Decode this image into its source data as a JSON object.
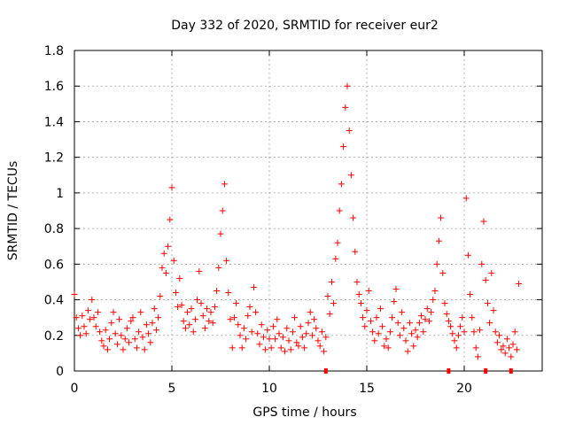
{
  "chart_data": {
    "type": "scatter",
    "title": "Day 332 of 2020, SRMTID for receiver eur2",
    "xlabel": "GPS time / hours",
    "ylabel": "SRMTID / TECUs",
    "xlim": [
      0,
      24
    ],
    "ylim": [
      0,
      1.8
    ],
    "xticks": [
      0,
      5,
      10,
      15,
      20
    ],
    "yticks": [
      0,
      0.2,
      0.4,
      0.6,
      0.8,
      1,
      1.2,
      1.4,
      1.6,
      1.8
    ],
    "xtick_labels": [
      "0",
      "5",
      "10",
      "15",
      "20"
    ],
    "ytick_labels": [
      "0",
      "0.2",
      "0.4",
      "0.6",
      "0.8",
      "1",
      "1.2",
      "1.4",
      "1.6",
      "1.8"
    ],
    "grid": true,
    "marker": "+",
    "color": "#ff0000",
    "series": [
      {
        "name": "SRMTID",
        "x": [
          0.0,
          0.1,
          0.2,
          0.3,
          0.4,
          0.5,
          0.6,
          0.7,
          0.8,
          0.9,
          1.0,
          1.1,
          1.2,
          1.3,
          1.4,
          1.5,
          1.6,
          1.7,
          1.8,
          1.9,
          2.0,
          2.1,
          2.2,
          2.3,
          2.4,
          2.5,
          2.6,
          2.7,
          2.8,
          2.9,
          3.0,
          3.1,
          3.2,
          3.3,
          3.4,
          3.5,
          3.6,
          3.7,
          3.8,
          3.9,
          4.0,
          4.1,
          4.2,
          4.3,
          4.4,
          4.5,
          4.6,
          4.7,
          4.8,
          4.9,
          5.0,
          5.1,
          5.2,
          5.3,
          5.4,
          5.5,
          5.6,
          5.7,
          5.8,
          5.9,
          6.0,
          6.1,
          6.2,
          6.3,
          6.4,
          6.5,
          6.6,
          6.7,
          6.8,
          6.9,
          7.0,
          7.1,
          7.2,
          7.3,
          7.4,
          7.5,
          7.6,
          7.7,
          7.8,
          7.9,
          8.0,
          8.1,
          8.2,
          8.3,
          8.4,
          8.5,
          8.6,
          8.7,
          8.8,
          8.9,
          9.0,
          9.1,
          9.2,
          9.3,
          9.4,
          9.5,
          9.6,
          9.7,
          9.8,
          9.9,
          10.0,
          10.1,
          10.2,
          10.3,
          10.4,
          10.5,
          10.6,
          10.7,
          10.8,
          10.9,
          11.0,
          11.1,
          11.2,
          11.3,
          11.4,
          11.5,
          11.6,
          11.7,
          11.8,
          11.9,
          12.0,
          12.1,
          12.2,
          12.3,
          12.4,
          12.5,
          12.6,
          12.7,
          12.8,
          12.9,
          13.0,
          13.1,
          13.2,
          13.3,
          13.4,
          13.5,
          13.6,
          13.7,
          13.8,
          13.9,
          14.0,
          14.1,
          14.2,
          14.3,
          14.4,
          14.5,
          14.6,
          14.7,
          14.8,
          14.9,
          15.0,
          15.1,
          15.2,
          15.3,
          15.4,
          15.5,
          15.6,
          15.7,
          15.8,
          15.9,
          16.0,
          16.1,
          16.2,
          16.3,
          16.4,
          16.5,
          16.6,
          16.7,
          16.8,
          16.9,
          17.0,
          17.1,
          17.2,
          17.3,
          17.4,
          17.5,
          17.6,
          17.7,
          17.8,
          17.9,
          18.0,
          18.1,
          18.2,
          18.3,
          18.4,
          18.5,
          18.6,
          18.7,
          18.8,
          18.9,
          19.0,
          19.1,
          19.2,
          19.3,
          19.4,
          19.5,
          19.6,
          19.7,
          19.8,
          19.9,
          20.0,
          20.1,
          20.2,
          20.3,
          20.4,
          20.5,
          20.6,
          20.7,
          20.8,
          20.9,
          21.0,
          21.1,
          21.2,
          21.3,
          21.4,
          21.5,
          21.6,
          21.7,
          21.8,
          21.9,
          22.0,
          22.1,
          22.2,
          22.3,
          22.4,
          22.5,
          22.6,
          22.7,
          22.8
        ],
        "y": [
          0.43,
          0.3,
          0.24,
          0.2,
          0.31,
          0.25,
          0.21,
          0.34,
          0.29,
          0.4,
          0.3,
          0.25,
          0.33,
          0.22,
          0.17,
          0.14,
          0.23,
          0.12,
          0.18,
          0.27,
          0.33,
          0.21,
          0.15,
          0.29,
          0.2,
          0.12,
          0.18,
          0.24,
          0.16,
          0.28,
          0.3,
          0.18,
          0.13,
          0.22,
          0.33,
          0.19,
          0.12,
          0.26,
          0.21,
          0.16,
          0.27,
          0.35,
          0.23,
          0.3,
          0.42,
          0.58,
          0.66,
          0.55,
          0.7,
          0.85,
          1.03,
          0.62,
          0.44,
          0.36,
          0.52,
          0.37,
          0.28,
          0.24,
          0.33,
          0.26,
          0.35,
          0.22,
          0.29,
          0.4,
          0.56,
          0.38,
          0.31,
          0.24,
          0.35,
          0.28,
          0.33,
          0.27,
          0.36,
          0.45,
          0.58,
          0.77,
          0.9,
          1.05,
          0.62,
          0.44,
          0.29,
          0.13,
          0.3,
          0.38,
          0.26,
          0.2,
          0.13,
          0.24,
          0.18,
          0.31,
          0.36,
          0.22,
          0.47,
          0.33,
          0.21,
          0.15,
          0.26,
          0.19,
          0.12,
          0.23,
          0.18,
          0.13,
          0.25,
          0.18,
          0.29,
          0.21,
          0.13,
          0.19,
          0.11,
          0.24,
          0.17,
          0.12,
          0.22,
          0.3,
          0.16,
          0.14,
          0.25,
          0.19,
          0.13,
          0.21,
          0.27,
          0.33,
          0.2,
          0.29,
          0.24,
          0.17,
          0.14,
          0.22,
          0.11,
          0.19,
          0.42,
          0.32,
          0.5,
          0.38,
          0.63,
          0.72,
          0.9,
          1.05,
          1.26,
          1.48,
          1.6,
          1.35,
          1.1,
          0.86,
          0.67,
          0.5,
          0.43,
          0.38,
          0.3,
          0.25,
          0.34,
          0.45,
          0.28,
          0.22,
          0.17,
          0.3,
          0.21,
          0.35,
          0.25,
          0.14,
          0.18,
          0.13,
          0.22,
          0.3,
          0.39,
          0.46,
          0.27,
          0.2,
          0.33,
          0.24,
          0.17,
          0.11,
          0.27,
          0.21,
          0.14,
          0.23,
          0.19,
          0.27,
          0.31,
          0.22,
          0.29,
          0.35,
          0.28,
          0.33,
          0.4,
          0.45,
          0.6,
          0.73,
          0.86,
          0.55,
          0.38,
          0.32,
          0.28,
          0.25,
          0.21,
          0.17,
          0.13,
          0.2,
          0.25,
          0.3,
          0.22,
          0.97,
          0.65,
          0.43,
          0.3,
          0.22,
          0.13,
          0.08,
          0.23,
          0.6,
          0.84,
          0.51,
          0.38,
          0.27,
          0.55,
          0.34,
          0.22,
          0.16,
          0.2,
          0.12,
          0.14,
          0.1,
          0.18,
          0.13,
          0.08,
          0.15,
          0.22,
          0.12,
          0.49
        ]
      }
    ],
    "zero_markers_x": [
      12.9,
      19.2,
      21.1,
      22.4
    ]
  }
}
